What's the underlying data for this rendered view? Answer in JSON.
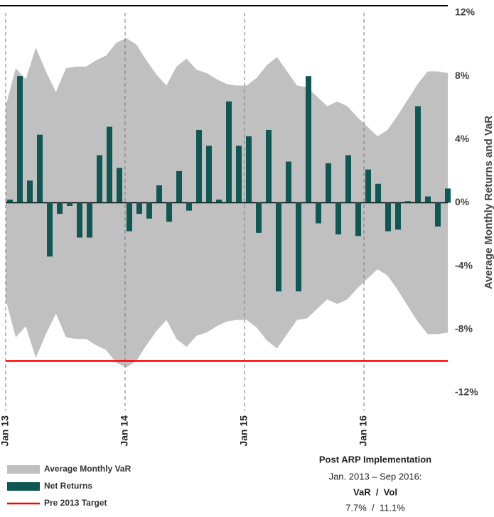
{
  "chart_data": {
    "type": "bar",
    "y_label": "Average Monthly Returns and VaR",
    "categories": [
      "Jan 13",
      null,
      null,
      null,
      null,
      null,
      null,
      null,
      null,
      null,
      null,
      null,
      "Jan 14",
      null,
      null,
      null,
      null,
      null,
      null,
      null,
      null,
      null,
      null,
      null,
      "Jan 15",
      null,
      null,
      null,
      null,
      null,
      null,
      null,
      null,
      null,
      null,
      null,
      "Jan 16",
      null,
      null,
      null,
      null,
      null,
      null,
      null,
      null
    ],
    "series": [
      {
        "name": "Average Monthly VaR",
        "color": "#c0c0c0",
        "values": [
          6.1,
          8.5,
          7.8,
          9.8,
          8.3,
          7.0,
          8.5,
          8.6,
          8.6,
          9.0,
          9.3,
          10.1,
          10.4,
          10.0,
          9.0,
          8.1,
          7.4,
          8.6,
          9.1,
          8.4,
          8.2,
          7.8,
          7.5,
          7.4,
          7.4,
          7.9,
          8.7,
          9.2,
          8.3,
          7.4,
          7.3,
          6.7,
          6.1,
          6.4,
          6.1,
          5.4,
          4.8,
          4.2,
          4.6,
          5.5,
          6.5,
          7.5,
          8.3,
          8.3,
          8.2
        ]
      },
      {
        "name": "Net Returns",
        "color": "#0e5753",
        "values": [
          0.2,
          8.0,
          1.4,
          4.3,
          -3.4,
          -0.7,
          -0.2,
          -2.2,
          -2.2,
          3.0,
          4.8,
          2.2,
          -1.8,
          -0.7,
          -1.0,
          1.1,
          -1.2,
          2.0,
          -0.5,
          4.6,
          3.6,
          0.2,
          6.4,
          3.6,
          4.2,
          -1.9,
          4.6,
          -5.6,
          2.6,
          -5.6,
          8.0,
          -1.3,
          2.5,
          -2.0,
          3.0,
          -2.1,
          2.1,
          1.2,
          -1.8,
          -1.7,
          0.1,
          6.1,
          0.4,
          -1.5,
          0.9
        ]
      },
      {
        "name": "Pre 2013 Target",
        "color": "#ff0000",
        "value": -10
      }
    ],
    "ylim": [
      -12,
      12
    ],
    "yticks": [
      {
        "value": -12,
        "label": "-12%"
      },
      {
        "value": -8,
        "label": "-8%"
      },
      {
        "value": -4,
        "label": "-4%"
      },
      {
        "value": 0,
        "label": "0%"
      },
      {
        "value": 4,
        "label": "4%"
      },
      {
        "value": 8,
        "label": "8%"
      },
      {
        "value": 12,
        "label": "12%"
      }
    ],
    "annotation": {
      "heading": "Post ARP Implementation",
      "period": "Jan. 2013 – Sep 2016:",
      "metrics": "VaR  /  Vol",
      "figures": "7.7%  /  11.1%"
    }
  }
}
